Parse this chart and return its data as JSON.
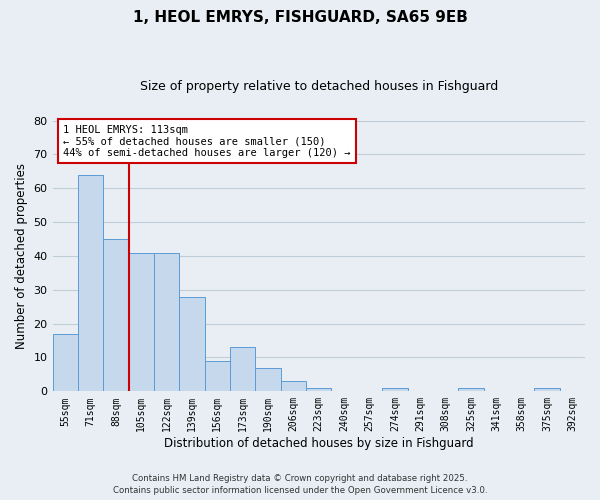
{
  "title": "1, HEOL EMRYS, FISHGUARD, SA65 9EB",
  "subtitle": "Size of property relative to detached houses in Fishguard",
  "xlabel": "Distribution of detached houses by size in Fishguard",
  "ylabel": "Number of detached properties",
  "bar_labels": [
    "55sqm",
    "71sqm",
    "88sqm",
    "105sqm",
    "122sqm",
    "139sqm",
    "156sqm",
    "173sqm",
    "190sqm",
    "206sqm",
    "223sqm",
    "240sqm",
    "257sqm",
    "274sqm",
    "291sqm",
    "308sqm",
    "325sqm",
    "341sqm",
    "358sqm",
    "375sqm",
    "392sqm"
  ],
  "bar_values": [
    17,
    64,
    45,
    41,
    41,
    28,
    9,
    13,
    7,
    3,
    1,
    0,
    0,
    1,
    0,
    0,
    1,
    0,
    0,
    1,
    0
  ],
  "bar_color": "#c6d9ec",
  "bar_edge_color": "#5b9bd5",
  "ylim": [
    0,
    80
  ],
  "yticks": [
    0,
    10,
    20,
    30,
    40,
    50,
    60,
    70,
    80
  ],
  "vline_color": "#cc0000",
  "annotation_line1": "1 HEOL EMRYS: 113sqm",
  "annotation_line2": "← 55% of detached houses are smaller (150)",
  "annotation_line3": "44% of semi-detached houses are larger (120) →",
  "footer_line1": "Contains HM Land Registry data © Crown copyright and database right 2025.",
  "footer_line2": "Contains public sector information licensed under the Open Government Licence v3.0.",
  "background_color": "#e8eef4",
  "grid_color": "#c0cdd8"
}
